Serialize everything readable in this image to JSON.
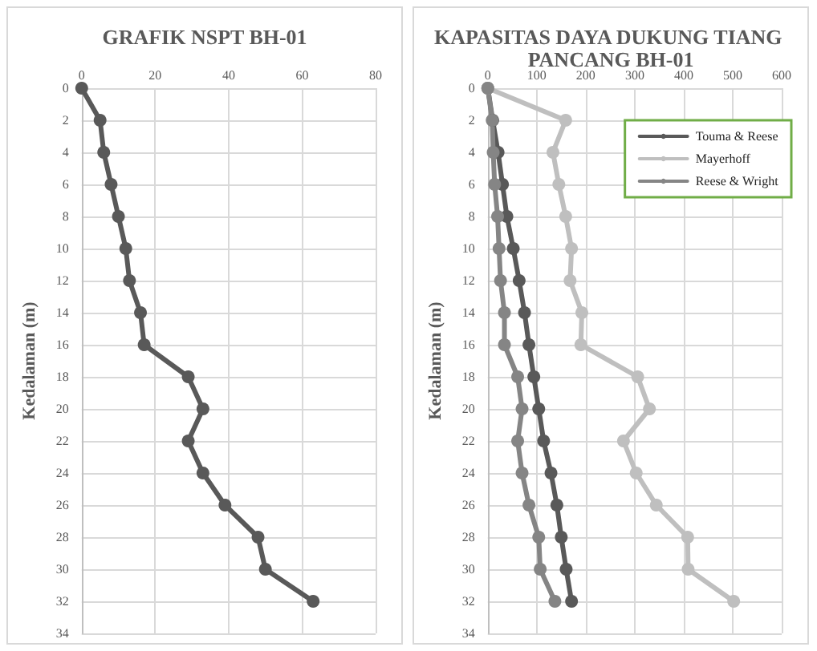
{
  "chart_data": [
    {
      "type": "line",
      "title": "GRAFIK NSPT BH-01",
      "ylabel": "Kedalaman (m)",
      "xlim": [
        0,
        80
      ],
      "xticks": [
        0,
        20,
        40,
        60,
        80
      ],
      "ylim": [
        34,
        0
      ],
      "yticks": [
        0,
        2,
        4,
        6,
        8,
        10,
        12,
        14,
        16,
        18,
        20,
        22,
        24,
        26,
        28,
        30,
        32,
        34
      ],
      "grid": true,
      "marker": "circle",
      "line_style": "solid",
      "legend": false,
      "series": [
        {
          "color": "#595959",
          "x": [
            0,
            5,
            6,
            8,
            10,
            12,
            13,
            16,
            17,
            29,
            33,
            29,
            33,
            39,
            48,
            50,
            63
          ],
          "values": [
            0,
            2,
            4,
            6,
            8,
            10,
            12,
            14,
            16,
            18,
            20,
            22,
            24,
            26,
            28,
            30,
            32
          ]
        }
      ]
    },
    {
      "type": "line",
      "title": "KAPASITAS DAYA DUKUNG TIANG PANCANG BH-01",
      "ylabel": "Kedalaman (m)",
      "xlim": [
        0,
        600
      ],
      "xticks": [
        0,
        100,
        200,
        300,
        400,
        500,
        600
      ],
      "ylim": [
        34,
        0
      ],
      "yticks": [
        0,
        2,
        4,
        6,
        8,
        10,
        12,
        14,
        16,
        18,
        20,
        22,
        24,
        26,
        28,
        30,
        32,
        34
      ],
      "grid": true,
      "marker": "circle",
      "line_style": "solid",
      "legend": "top right",
      "series": [
        {
          "name": "Touma & Reese",
          "color": "#595959",
          "x": [
            0,
            10,
            21,
            30,
            39,
            52,
            64,
            75,
            84,
            94,
            104,
            114,
            129,
            141,
            150,
            160,
            171
          ],
          "values": [
            0,
            2,
            4,
            6,
            8,
            10,
            12,
            14,
            16,
            18,
            20,
            22,
            24,
            26,
            28,
            30,
            32
          ]
        },
        {
          "name": "Mayerhoff",
          "color": "#bfbfbf",
          "x": [
            0,
            159,
            133,
            145,
            159,
            171,
            168,
            192,
            190,
            306,
            330,
            277,
            303,
            344,
            408,
            409,
            502
          ],
          "values": [
            0,
            2,
            4,
            6,
            8,
            10,
            12,
            14,
            16,
            18,
            20,
            22,
            24,
            26,
            28,
            30,
            32
          ]
        },
        {
          "name": "Reese & Wright",
          "color": "#858585",
          "x": [
            0,
            9,
            11,
            14,
            20,
            23,
            26,
            34,
            34,
            61,
            70,
            61,
            70,
            84,
            104,
            107,
            137
          ],
          "values": [
            0,
            2,
            4,
            6,
            8,
            10,
            12,
            14,
            16,
            18,
            20,
            22,
            24,
            26,
            28,
            30,
            32
          ]
        }
      ]
    }
  ]
}
